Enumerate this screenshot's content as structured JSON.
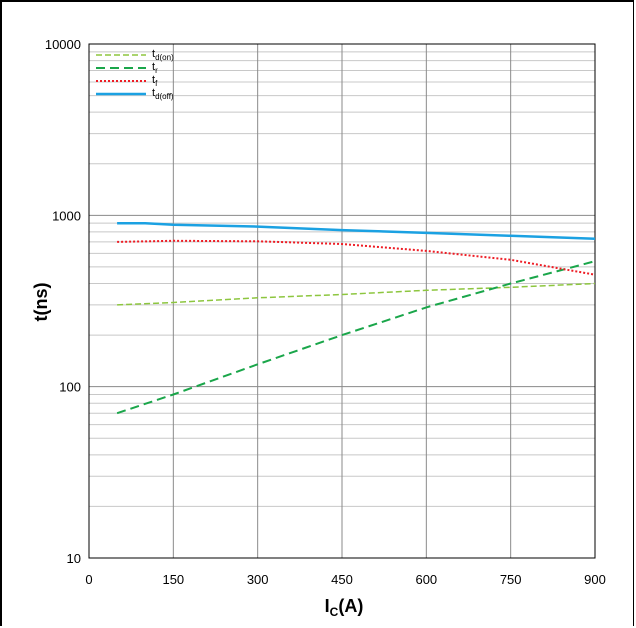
{
  "chart_data": {
    "type": "line",
    "xlabel": {
      "main": "I",
      "sub": "C",
      "tail": "(A)"
    },
    "ylabel": "t(ns)",
    "xlim": [
      0,
      900
    ],
    "ylim": [
      10,
      10000
    ],
    "yscale": "log",
    "grid": true,
    "legend_position": "top-left",
    "x_ticks": [
      "0",
      "150",
      "300",
      "450",
      "600",
      "750",
      "900"
    ],
    "y_ticks": [
      "10",
      "100",
      "1000",
      "10000"
    ],
    "series": [
      {
        "name": "td(on)",
        "label_main": "t",
        "label_sub": "d(on)",
        "color": "#8dc63f",
        "style": "dashed-thin",
        "x": [
          50,
          150,
          300,
          450,
          600,
          750,
          900
        ],
        "y": [
          300,
          310,
          330,
          345,
          365,
          380,
          400
        ]
      },
      {
        "name": "tr",
        "label_main": "t",
        "label_sub": "r",
        "color": "#1aa64a",
        "style": "dashed",
        "x": [
          50,
          150,
          300,
          450,
          600,
          750,
          900
        ],
        "y": [
          70,
          90,
          135,
          200,
          290,
          400,
          540
        ]
      },
      {
        "name": "tf",
        "label_main": "t",
        "label_sub": "f",
        "color": "#ee1c24",
        "style": "dotted",
        "x": [
          50,
          150,
          300,
          450,
          600,
          750,
          900
        ],
        "y": [
          700,
          710,
          705,
          680,
          620,
          550,
          450
        ]
      },
      {
        "name": "td(off)",
        "label_main": "t",
        "label_sub": "d(off)",
        "color": "#1ba1e2",
        "style": "solid",
        "x": [
          50,
          100,
          150,
          300,
          450,
          600,
          750,
          900
        ],
        "y": [
          900,
          900,
          880,
          860,
          820,
          790,
          760,
          730
        ]
      }
    ]
  }
}
